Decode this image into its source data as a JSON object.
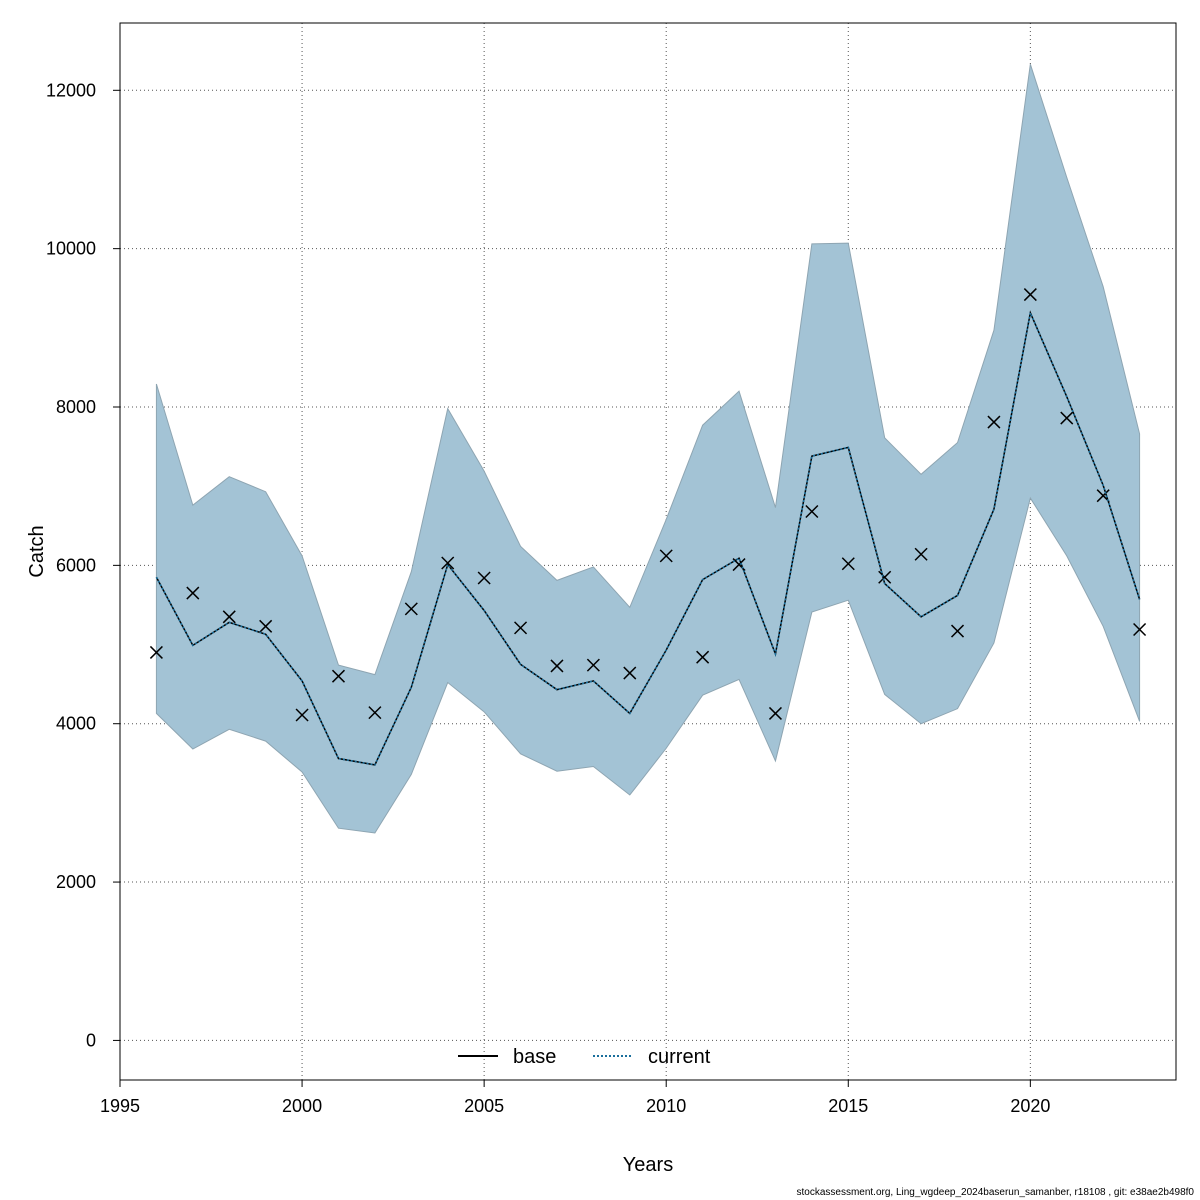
{
  "chart_data": {
    "type": "line",
    "title": "",
    "xlabel": "Years",
    "ylabel": "Catch",
    "xlim": [
      1995,
      2024
    ],
    "ylim": [
      -500,
      12850
    ],
    "xticks": [
      1995,
      2000,
      2005,
      2010,
      2015,
      2020
    ],
    "yticks": [
      0,
      2000,
      4000,
      6000,
      8000,
      10000,
      12000
    ],
    "grid": true,
    "legend_position": "bottom",
    "legend": [
      {
        "name": "base",
        "style": "solid",
        "color": "#000000"
      },
      {
        "name": "current",
        "style": "dotted",
        "color": "#1a6f9c"
      }
    ],
    "x": [
      1996,
      1997,
      1998,
      1999,
      2000,
      2001,
      2002,
      2003,
      2004,
      2005,
      2006,
      2007,
      2008,
      2009,
      2010,
      2011,
      2012,
      2013,
      2014,
      2015,
      2016,
      2017,
      2018,
      2019,
      2020,
      2021,
      2022,
      2023
    ],
    "observed": [
      4900,
      5650,
      5350,
      5230,
      4110,
      4600,
      4140,
      5450,
      6030,
      5840,
      5210,
      4730,
      4740,
      4640,
      6120,
      4840,
      6010,
      4130,
      6680,
      6020,
      5850,
      6140,
      5170,
      7810,
      9420,
      7860,
      6880,
      5190
    ],
    "series": [
      {
        "name": "base",
        "values": [
          5850,
          4990,
          5280,
          5130,
          4540,
          3560,
          3480,
          4460,
          6010,
          5430,
          4750,
          4430,
          4540,
          4130,
          4930,
          5820,
          6090,
          4880,
          7380,
          7490,
          5770,
          5350,
          5620,
          6710,
          9190,
          8130,
          7010,
          5570
        ]
      },
      {
        "name": "current",
        "values": [
          5850,
          4990,
          5280,
          5130,
          4540,
          3560,
          3480,
          4460,
          6010,
          5430,
          4750,
          4430,
          4540,
          4130,
          4930,
          5820,
          6090,
          4880,
          7380,
          7490,
          5770,
          5350,
          5620,
          6710,
          9190,
          8130,
          7010,
          5570
        ]
      }
    ],
    "ci_lower": [
      4130,
      3680,
      3930,
      3780,
      3390,
      2680,
      2620,
      3360,
      4520,
      4150,
      3620,
      3400,
      3460,
      3100,
      3690,
      4360,
      4560,
      3530,
      5410,
      5560,
      4370,
      4000,
      4190,
      5020,
      6850,
      6120,
      5230,
      4030
    ],
    "ci_upper": [
      8290,
      6760,
      7120,
      6930,
      6120,
      4740,
      4620,
      5920,
      7980,
      7190,
      6240,
      5810,
      5980,
      5470,
      6580,
      7770,
      8200,
      6730,
      10060,
      10070,
      7610,
      7150,
      7550,
      8970,
      12330,
      10900,
      9520,
      7660
    ],
    "colors": {
      "ci_fill": "#a3c3d5",
      "ci_edge": "#8ea5b2",
      "current_line": "#1a6f9c",
      "base_line": "#000000",
      "marker": "#000000",
      "grid": "#555555"
    }
  },
  "footer": "stockassessment.org, Ling_wgdeep_2024baserun_samanber, r18108 , git: e38ae2b498f0"
}
